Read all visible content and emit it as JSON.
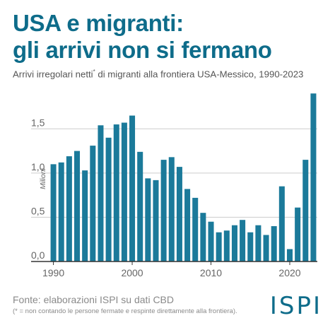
{
  "header": {
    "title_line1": "USA e migranti:",
    "title_line2": "gli arrivi non si fermano",
    "subtitle_pre": "Arrivi irregolari netti",
    "subtitle_mark": "*",
    "subtitle_post": " di migranti alla frontiera USA-Messico, 1990-2023"
  },
  "footer": {
    "source": "Fonte: elaborazioni ISPI su dati CBD",
    "note": "(* = non contando le persone fermate e respinte direttamente alla frontiera).",
    "logo": "ISPI"
  },
  "colors": {
    "bar": "#1b7a9a",
    "title": "#0e6c8a",
    "grid": "#cccccc",
    "axis": "#333333"
  },
  "chart_data": {
    "type": "bar",
    "title": "",
    "xlabel": "",
    "ylabel": "Milioni",
    "x": [
      1990,
      1991,
      1992,
      1993,
      1994,
      1995,
      1996,
      1997,
      1998,
      1999,
      2000,
      2001,
      2002,
      2003,
      2004,
      2005,
      2006,
      2007,
      2008,
      2009,
      2010,
      2011,
      2012,
      2013,
      2014,
      2015,
      2016,
      2017,
      2018,
      2019,
      2020,
      2021,
      2022,
      2023
    ],
    "values": [
      1.1,
      1.12,
      1.19,
      1.25,
      1.03,
      1.31,
      1.54,
      1.4,
      1.55,
      1.57,
      1.65,
      1.24,
      0.94,
      0.92,
      1.15,
      1.18,
      1.07,
      0.82,
      0.72,
      0.55,
      0.45,
      0.33,
      0.35,
      0.41,
      0.47,
      0.33,
      0.41,
      0.3,
      0.4,
      0.85,
      0.14,
      0.61,
      1.15,
      1.9
    ],
    "ylim": [
      0,
      1.95
    ],
    "yticks": [
      0.0,
      0.5,
      1.0,
      1.5
    ],
    "ytick_labels": [
      "0,0",
      "0,5",
      "1,0",
      "1,5"
    ],
    "xticks": [
      1990,
      2000,
      2010,
      2020
    ],
    "xtick_labels": [
      "1990",
      "2000",
      "2010",
      "2020"
    ],
    "grid": true
  }
}
